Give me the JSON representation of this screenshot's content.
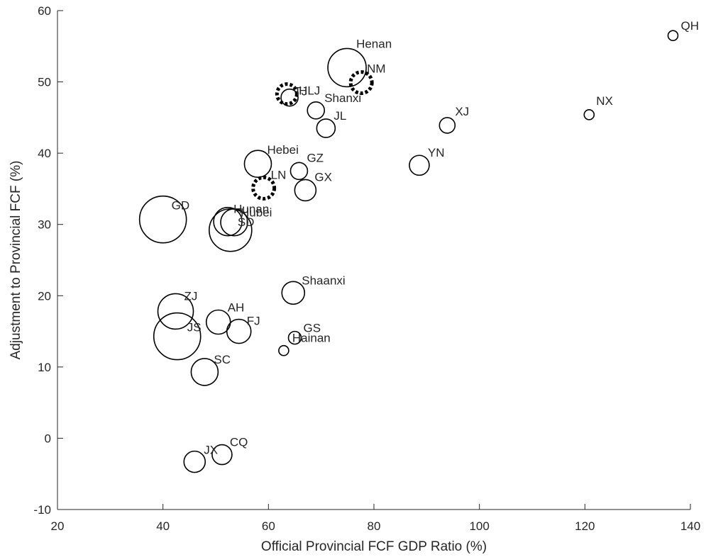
{
  "chart_data": {
    "type": "scatter",
    "title": "",
    "xlabel": "Official Provincial FCF GDP Ratio (%)",
    "ylabel": "Adjustment to Provincial FCF (%)",
    "xlim": [
      20,
      140
    ],
    "ylim": [
      -10,
      60
    ],
    "xticks": [
      20,
      40,
      60,
      80,
      100,
      120,
      140
    ],
    "yticks": [
      -10,
      0,
      10,
      20,
      30,
      40,
      50,
      60
    ],
    "grid": false,
    "legend": "none",
    "marker": "open-circle (size varies)",
    "colors": {
      "axis": "#262626",
      "marker": "#000000",
      "background": "#ffffff"
    },
    "points": [
      {
        "label": "QH",
        "x": 136.7,
        "y": 56.5,
        "size": 7,
        "style": "solid",
        "label_dx": 11,
        "label_dy": -8
      },
      {
        "label": "Henan",
        "x": 74.9,
        "y": 52.0,
        "size": 27,
        "style": "solid",
        "label_dx": 13,
        "label_dy": -28
      },
      {
        "label": "NM",
        "x": 77.6,
        "y": 49.9,
        "size": 15,
        "style": "dashed",
        "label_dx": 8,
        "label_dy": -14
      },
      {
        "label": "TJ",
        "x": 63.5,
        "y": 48.3,
        "size": 14,
        "style": "dashed",
        "label_dx": 10,
        "label_dy": 2
      },
      {
        "label": "HLJ",
        "x": 64.0,
        "y": 47.8,
        "size": 12,
        "style": "solid",
        "label_dx": 13,
        "label_dy": -4
      },
      {
        "label": "Shanxi",
        "x": 69.0,
        "y": 46.0,
        "size": 12,
        "style": "solid",
        "label_dx": 12,
        "label_dy": -12
      },
      {
        "label": "NX",
        "x": 120.8,
        "y": 45.4,
        "size": 7,
        "style": "solid",
        "label_dx": 10,
        "label_dy": -14
      },
      {
        "label": "XJ",
        "x": 93.9,
        "y": 43.9,
        "size": 11,
        "style": "solid",
        "label_dx": 11,
        "label_dy": -14
      },
      {
        "label": "JL",
        "x": 70.9,
        "y": 43.5,
        "size": 13,
        "style": "solid",
        "label_dx": 11,
        "label_dy": -12
      },
      {
        "label": "Hebei",
        "x": 58.0,
        "y": 38.5,
        "size": 19,
        "style": "solid",
        "label_dx": 13,
        "label_dy": -14
      },
      {
        "label": "YN",
        "x": 88.6,
        "y": 38.3,
        "size": 14,
        "style": "solid",
        "label_dx": 12,
        "label_dy": -12
      },
      {
        "label": "GZ",
        "x": 65.8,
        "y": 37.5,
        "size": 12,
        "style": "solid",
        "label_dx": 11,
        "label_dy": -13
      },
      {
        "label": "LN",
        "x": 59.1,
        "y": 35.1,
        "size": 15,
        "style": "dashed",
        "label_dx": 10,
        "label_dy": -13
      },
      {
        "label": "GX",
        "x": 67.0,
        "y": 34.8,
        "size": 15,
        "style": "solid",
        "label_dx": 13,
        "label_dy": -13
      },
      {
        "label": "GD",
        "x": 40.0,
        "y": 30.7,
        "size": 33,
        "style": "solid",
        "label_dx": 12,
        "label_dy": -14
      },
      {
        "label": "Hunan",
        "x": 52.3,
        "y": 30.4,
        "size": 20,
        "style": "solid",
        "label_dx": 8,
        "label_dy": -12
      },
      {
        "label": "Hubei",
        "x": 53.5,
        "y": 30.3,
        "size": 19,
        "style": "solid",
        "label_dx": 9,
        "label_dy": -8
      },
      {
        "label": "SD",
        "x": 52.8,
        "y": 29.2,
        "size": 30,
        "style": "solid",
        "label_dx": 10,
        "label_dy": -6
      },
      {
        "label": "Shaanxi",
        "x": 64.7,
        "y": 20.4,
        "size": 16,
        "style": "solid",
        "label_dx": 12,
        "label_dy": -12
      },
      {
        "label": "ZJ",
        "x": 42.4,
        "y": 17.8,
        "size": 25,
        "style": "solid",
        "label_dx": 12,
        "label_dy": -16
      },
      {
        "label": "AH",
        "x": 50.5,
        "y": 16.3,
        "size": 17,
        "style": "solid",
        "label_dx": 13,
        "label_dy": -15
      },
      {
        "label": "FJ",
        "x": 54.4,
        "y": 15.0,
        "size": 17,
        "style": "solid",
        "label_dx": 11,
        "label_dy": -9
      },
      {
        "label": "JS",
        "x": 42.7,
        "y": 14.3,
        "size": 33,
        "style": "solid",
        "label_dx": 14,
        "label_dy": -7
      },
      {
        "label": "GS",
        "x": 65.0,
        "y": 14.1,
        "size": 9,
        "style": "solid",
        "label_dx": 12,
        "label_dy": -8
      },
      {
        "label": "Hainan",
        "x": 62.9,
        "y": 12.3,
        "size": 7,
        "style": "solid",
        "label_dx": 12,
        "label_dy": -12
      },
      {
        "label": "SC",
        "x": 47.9,
        "y": 9.3,
        "size": 19,
        "style": "solid",
        "label_dx": 13,
        "label_dy": -12
      },
      {
        "label": "CQ",
        "x": 51.2,
        "y": -2.3,
        "size": 14,
        "style": "solid",
        "label_dx": 11,
        "label_dy": -12
      },
      {
        "label": "JX",
        "x": 46.0,
        "y": -3.3,
        "size": 15,
        "style": "solid",
        "label_dx": 13,
        "label_dy": -11
      }
    ]
  }
}
